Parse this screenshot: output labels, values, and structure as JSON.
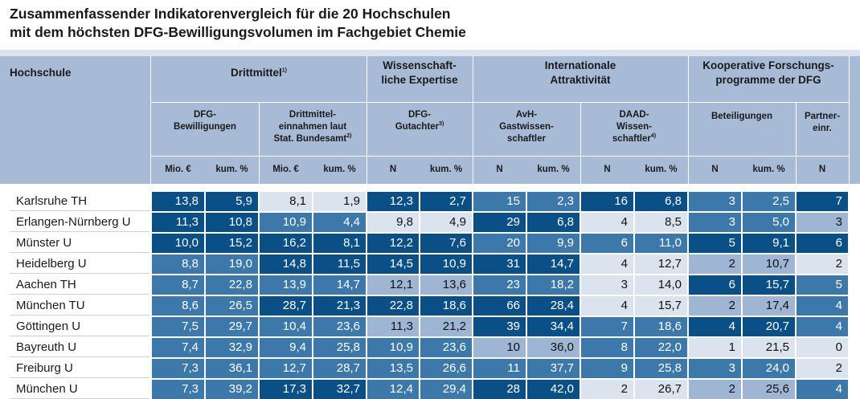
{
  "title": {
    "line1": "Zusammenfassender Indikatorenvergleich für die 20 Hochschulen",
    "line2": "mit dem höchsten DFG-Bewilligungsvolumen im Fachgebiet Chemie"
  },
  "header": {
    "hochschule": "Hochschule",
    "groups": {
      "drittmittel": "Drittmittel",
      "drittmittel_sup": "1)",
      "expertise_1": "Wissenschaft-",
      "expertise_2": "liche Expertise",
      "international_1": "Internationale",
      "international_2": "Attraktivität",
      "koop_1": "Kooperative Forschungs-",
      "koop_2": "programme der DFG"
    },
    "subs": {
      "dfg_bew_1": "DFG-",
      "dfg_bew_2": "Bewilligungen",
      "dm_ein_1": "Drittmittel-",
      "dm_ein_2": "einnahmen laut",
      "dm_ein_3": "Stat. Bundesamt",
      "dm_ein_sup": "2)",
      "gutachter_1": "DFG-",
      "gutachter_2": "Gutachter",
      "gutachter_sup": "3)",
      "avh_1": "AvH-",
      "avh_2": "Gastwissen-",
      "avh_3": "schaftler",
      "daad_1": "DAAD-",
      "daad_2": "Wissen-",
      "daad_3": "schaftler",
      "daad_sup": "4)",
      "beteiligungen": "Beteiligungen",
      "partner_1": "Partner-",
      "partner_2": "einr."
    },
    "units": [
      "Mio. €",
      "kum. %",
      "Mio. €",
      "kum. %",
      "N",
      "kum. %",
      "N",
      "kum. %",
      "N",
      "kum. %",
      "N",
      "kum. %",
      "N"
    ]
  },
  "rows": [
    {
      "name": "Karlsruhe TH",
      "values": [
        "13,8",
        "5,9",
        "8,1",
        "1,9",
        "12,3",
        "2,7",
        "15",
        "2,3",
        "16",
        "6,8",
        "3",
        "2,5",
        "7"
      ],
      "shades": [
        "dark",
        "dark",
        "pale",
        "pale",
        "dark",
        "dark",
        "mid",
        "mid",
        "dark",
        "dark",
        "mid",
        "mid",
        "dark"
      ]
    },
    {
      "name": "Erlangen-Nürnberg U",
      "values": [
        "11,3",
        "10,8",
        "10,9",
        "4,4",
        "9,8",
        "4,9",
        "29",
        "6,8",
        "4",
        "8,5",
        "3",
        "5,0",
        "3"
      ],
      "shades": [
        "dark",
        "dark",
        "mid",
        "mid",
        "pale",
        "pale",
        "dark",
        "dark",
        "pale",
        "pale",
        "mid",
        "mid",
        "light"
      ]
    },
    {
      "name": "Münster U",
      "values": [
        "10,0",
        "15,2",
        "16,2",
        "8,1",
        "12,2",
        "7,6",
        "20",
        "9,9",
        "6",
        "11,0",
        "5",
        "9,1",
        "6"
      ],
      "shades": [
        "dark",
        "dark",
        "dark",
        "dark",
        "dark",
        "dark",
        "mid",
        "mid",
        "mid",
        "mid",
        "dark",
        "dark",
        "dark"
      ]
    },
    {
      "name": "Heidelberg U",
      "values": [
        "8,8",
        "19,0",
        "14,8",
        "11,5",
        "14,5",
        "10,9",
        "31",
        "14,7",
        "4",
        "12,7",
        "2",
        "10,7",
        "2"
      ],
      "shades": [
        "mid",
        "mid",
        "dark",
        "dark",
        "dark",
        "dark",
        "dark",
        "dark",
        "pale",
        "pale",
        "light",
        "light",
        "pale"
      ]
    },
    {
      "name": "Aachen TH",
      "values": [
        "8,7",
        "22,8",
        "13,9",
        "14,7",
        "12,1",
        "13,6",
        "23",
        "18,2",
        "3",
        "14,0",
        "6",
        "15,7",
        "5"
      ],
      "shades": [
        "mid",
        "mid",
        "mid",
        "mid",
        "light",
        "light",
        "mid",
        "mid",
        "pale",
        "pale",
        "dark",
        "dark",
        "mid"
      ]
    },
    {
      "name": "München TU",
      "values": [
        "8,6",
        "26,5",
        "28,7",
        "21,3",
        "22,8",
        "18,6",
        "66",
        "28,4",
        "4",
        "15,7",
        "2",
        "17,4",
        "4"
      ],
      "shades": [
        "mid",
        "mid",
        "dark",
        "dark",
        "dark",
        "dark",
        "dark",
        "dark",
        "pale",
        "pale",
        "light",
        "light",
        "mid"
      ]
    },
    {
      "name": "Göttingen U",
      "values": [
        "7,5",
        "29,7",
        "10,4",
        "23,6",
        "11,3",
        "21,2",
        "39",
        "34,4",
        "7",
        "18,6",
        "4",
        "20,7",
        "4"
      ],
      "shades": [
        "mid",
        "mid",
        "mid",
        "mid",
        "light",
        "light",
        "dark",
        "dark",
        "mid",
        "mid",
        "dark",
        "dark",
        "mid"
      ]
    },
    {
      "name": "Bayreuth U",
      "values": [
        "7,4",
        "32,9",
        "9,4",
        "25,8",
        "10,9",
        "23,6",
        "10",
        "36,0",
        "8",
        "22,0",
        "1",
        "21,5",
        "0"
      ],
      "shades": [
        "mid",
        "mid",
        "mid",
        "mid",
        "mid",
        "mid",
        "light",
        "light",
        "mid",
        "mid",
        "pale",
        "pale",
        "pale"
      ]
    },
    {
      "name": "Freiburg U",
      "values": [
        "7,3",
        "36,1",
        "12,7",
        "28,7",
        "13,5",
        "26,6",
        "11",
        "37,7",
        "9",
        "25,8",
        "3",
        "24,0",
        "2"
      ],
      "shades": [
        "mid",
        "mid",
        "mid",
        "mid",
        "mid",
        "mid",
        "mid",
        "mid",
        "mid",
        "mid",
        "mid",
        "mid",
        "pale"
      ]
    },
    {
      "name": "München U",
      "values": [
        "7,3",
        "39,2",
        "17,3",
        "32,7",
        "12,4",
        "29,4",
        "28",
        "42,0",
        "2",
        "26,7",
        "2",
        "25,6",
        "4"
      ],
      "shades": [
        "mid",
        "mid",
        "dark",
        "dark",
        "mid",
        "mid",
        "dark",
        "dark",
        "pale",
        "pale",
        "light",
        "light",
        "mid"
      ]
    }
  ]
}
